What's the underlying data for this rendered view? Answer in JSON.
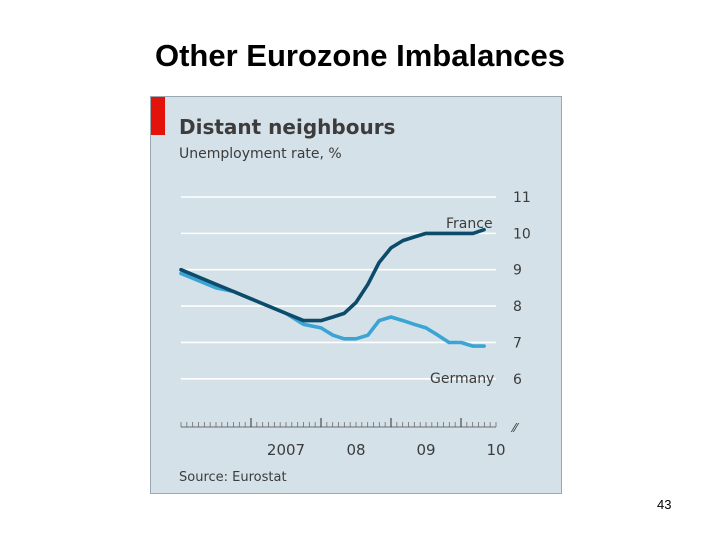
{
  "slide": {
    "title": "Other Eurozone Imbalances",
    "page_number": "43"
  },
  "chart_data": {
    "type": "line",
    "title": "Distant neighbours",
    "subtitle": "Unemployment rate, %",
    "source": "Source: Eurostat",
    "ylim": [
      5.5,
      11
    ],
    "ytick_labels": [
      "6",
      "7",
      "8",
      "9",
      "10",
      "11"
    ],
    "y_break_marker": "⁄⁄",
    "xlim": [
      2006.0,
      2010.5
    ],
    "xtick_labels": [
      {
        "value": 2007,
        "label": "2007"
      },
      {
        "value": 2008,
        "label": "08"
      },
      {
        "value": 2009,
        "label": "09"
      },
      {
        "value": 2010,
        "label": "10"
      }
    ],
    "grid": true,
    "series": [
      {
        "name": "France",
        "color": "#0d4b6b",
        "x": [
          2006.0,
          2006.25,
          2006.5,
          2006.75,
          2007.0,
          2007.25,
          2007.5,
          2007.75,
          2008.0,
          2008.17,
          2008.33,
          2008.5,
          2008.67,
          2008.83,
          2009.0,
          2009.17,
          2009.33,
          2009.5,
          2009.67,
          2009.83,
          2010.0,
          2010.17,
          2010.33
        ],
        "y": [
          9.0,
          8.8,
          8.6,
          8.4,
          8.2,
          8.0,
          7.8,
          7.6,
          7.6,
          7.7,
          7.8,
          8.1,
          8.6,
          9.2,
          9.6,
          9.8,
          9.9,
          10.0,
          10.0,
          10.0,
          10.0,
          10.0,
          10.1
        ]
      },
      {
        "name": "Germany",
        "color": "#3aa4d4",
        "x": [
          2006.0,
          2006.25,
          2006.5,
          2006.75,
          2007.0,
          2007.25,
          2007.5,
          2007.75,
          2008.0,
          2008.17,
          2008.33,
          2008.5,
          2008.67,
          2008.83,
          2009.0,
          2009.17,
          2009.33,
          2009.5,
          2009.67,
          2009.83,
          2010.0,
          2010.17,
          2010.33
        ],
        "y": [
          8.9,
          8.7,
          8.5,
          8.4,
          8.2,
          8.0,
          7.8,
          7.5,
          7.4,
          7.2,
          7.1,
          7.1,
          7.2,
          7.6,
          7.7,
          7.6,
          7.5,
          7.4,
          7.2,
          7.0,
          7.0,
          6.9,
          6.9
        ]
      }
    ],
    "series_labels": [
      {
        "series": "France",
        "text": "France"
      },
      {
        "series": "Germany",
        "text": "Germany"
      }
    ]
  }
}
